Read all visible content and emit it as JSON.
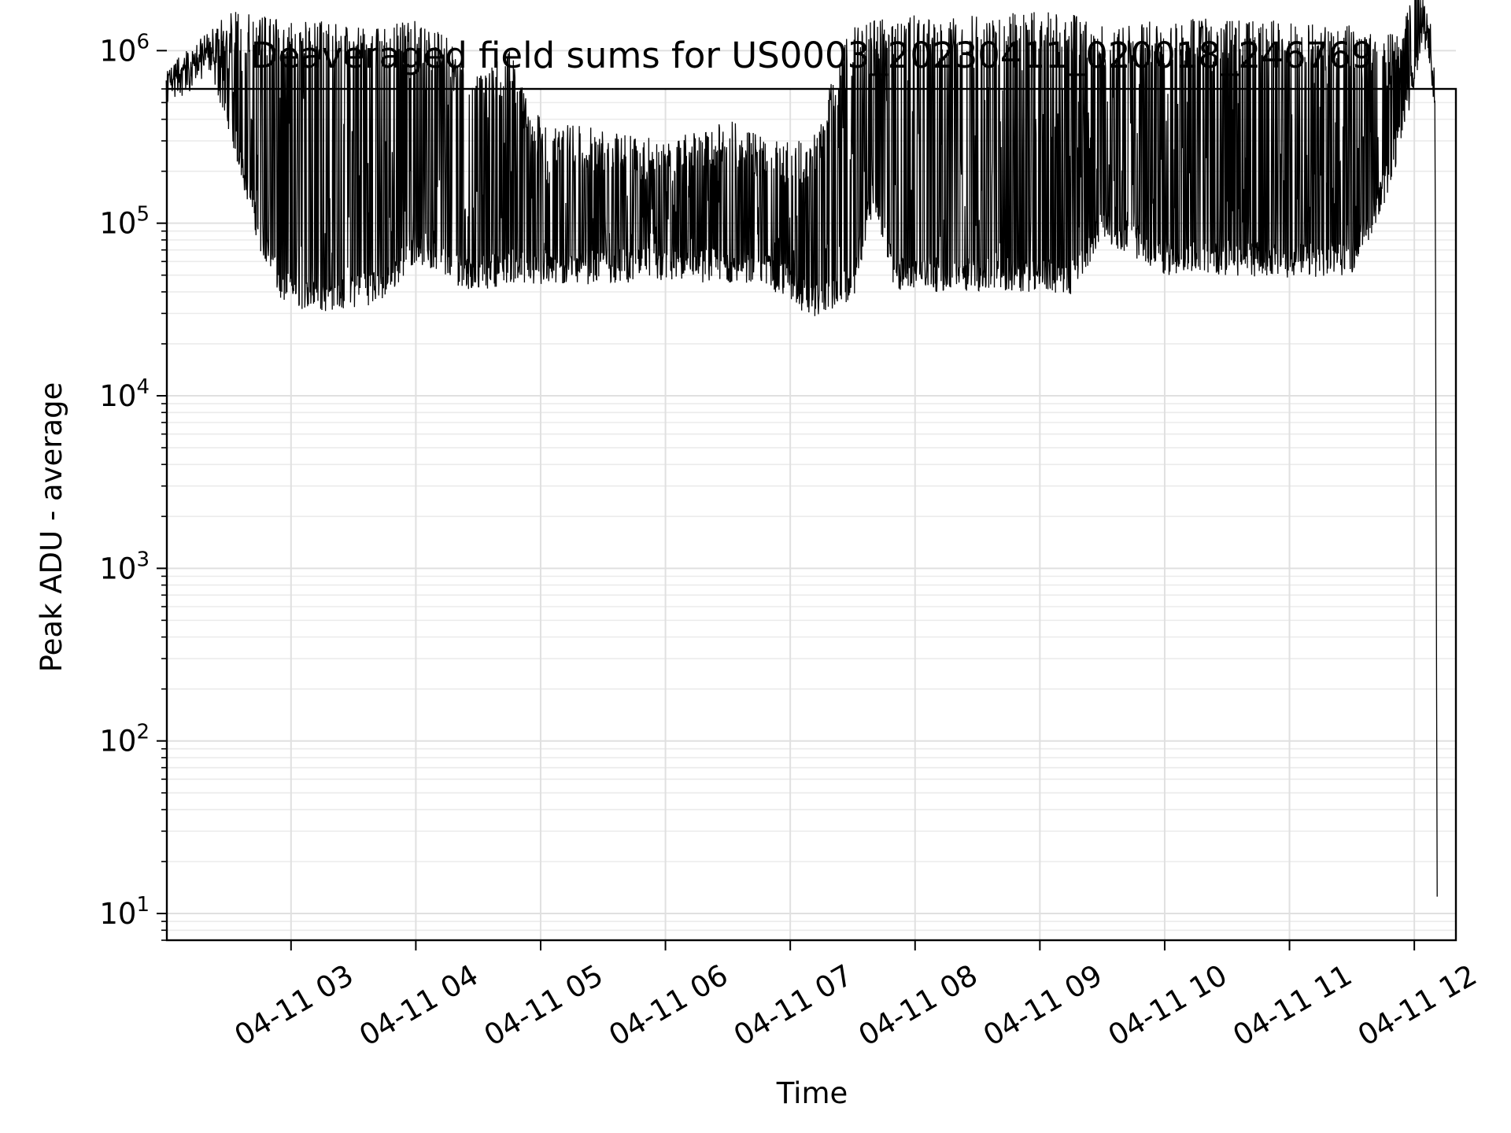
{
  "chart_data": {
    "type": "line",
    "title": "Deaveraged field sums for US0003_20230411_020018_246769",
    "xlabel": "Time",
    "ylabel": "Peak ADU - average",
    "yscale": "log",
    "ylim": [
      7,
      600000
    ],
    "xlim": [
      "2023-04-11T02:00:18",
      "2023-04-11T12:20:00"
    ],
    "grid": true,
    "line_color": "#000000",
    "x_ticks": [
      {
        "x": "2023-04-11T03:00",
        "label": "04-11 03"
      },
      {
        "x": "2023-04-11T04:00",
        "label": "04-11 04"
      },
      {
        "x": "2023-04-11T05:00",
        "label": "04-11 05"
      },
      {
        "x": "2023-04-11T06:00",
        "label": "04-11 06"
      },
      {
        "x": "2023-04-11T07:00",
        "label": "04-11 07"
      },
      {
        "x": "2023-04-11T08:00",
        "label": "04-11 08"
      },
      {
        "x": "2023-04-11T09:00",
        "label": "04-11 09"
      },
      {
        "x": "2023-04-11T10:00",
        "label": "04-11 10"
      },
      {
        "x": "2023-04-11T11:00",
        "label": "04-11 11"
      },
      {
        "x": "2023-04-11T12:00",
        "label": "04-11 12"
      }
    ],
    "y_ticks": [
      {
        "value": 10,
        "base": "10",
        "exp": "1"
      },
      {
        "value": 100,
        "base": "10",
        "exp": "2"
      },
      {
        "value": 1000,
        "base": "10",
        "exp": "3"
      },
      {
        "value": 10000,
        "base": "10",
        "exp": "4"
      },
      {
        "value": 100000,
        "base": "10",
        "exp": "5"
      },
      {
        "value": 1000000,
        "base": "10",
        "exp": "6"
      }
    ],
    "series": [
      {
        "x": [
          "2023-04-11T02:00",
          "2023-04-11T02:10",
          "2023-04-11T02:20",
          "2023-04-11T02:30",
          "2023-04-11T02:35",
          "2023-04-11T02:45",
          "2023-04-11T02:55",
          "2023-04-11T03:10",
          "2023-04-11T03:30",
          "2023-04-11T03:45",
          "2023-04-11T04:00",
          "2023-04-11T04:15",
          "2023-04-11T04:30",
          "2023-04-11T04:45",
          "2023-04-11T05:00",
          "2023-04-11T05:30",
          "2023-04-11T06:00",
          "2023-04-11T06:30",
          "2023-04-11T06:50",
          "2023-04-11T07:10",
          "2023-04-11T07:30",
          "2023-04-11T07:40",
          "2023-04-11T07:50",
          "2023-04-11T08:10",
          "2023-04-11T08:30",
          "2023-04-11T09:00",
          "2023-04-11T09:15",
          "2023-04-11T09:30",
          "2023-04-11T10:00",
          "2023-04-11T10:30",
          "2023-04-11T11:00",
          "2023-04-11T11:30",
          "2023-04-11T11:45",
          "2023-04-11T11:55",
          "2023-04-11T12:02",
          "2023-04-11T12:05",
          "2023-04-11T12:08",
          "2023-04-11T12:10",
          "2023-04-11T12:11"
        ],
        "low": [
          500000,
          650000,
          800000,
          350000,
          200000,
          70000,
          35000,
          30000,
          32000,
          35000,
          60000,
          45000,
          40000,
          45000,
          42000,
          45000,
          45000,
          45000,
          42000,
          28000,
          35000,
          120000,
          40000,
          40000,
          40000,
          40000,
          38000,
          80000,
          50000,
          50000,
          48000,
          50000,
          120000,
          300000,
          800000,
          1200000,
          900000,
          200000,
          10
        ],
        "high": [
          800000,
          1000000,
          1300000,
          1800000,
          1700000,
          1600000,
          1500000,
          1500000,
          1400000,
          1400000,
          1500000,
          1200000,
          700000,
          1000000,
          400000,
          350000,
          300000,
          400000,
          300000,
          300000,
          1500000,
          1500000,
          1600000,
          1600000,
          1600000,
          1700000,
          1700000,
          1400000,
          1500000,
          1600000,
          1500000,
          1400000,
          1200000,
          1400000,
          3300000,
          1600000,
          1300000,
          700000,
          20
        ]
      }
    ]
  }
}
